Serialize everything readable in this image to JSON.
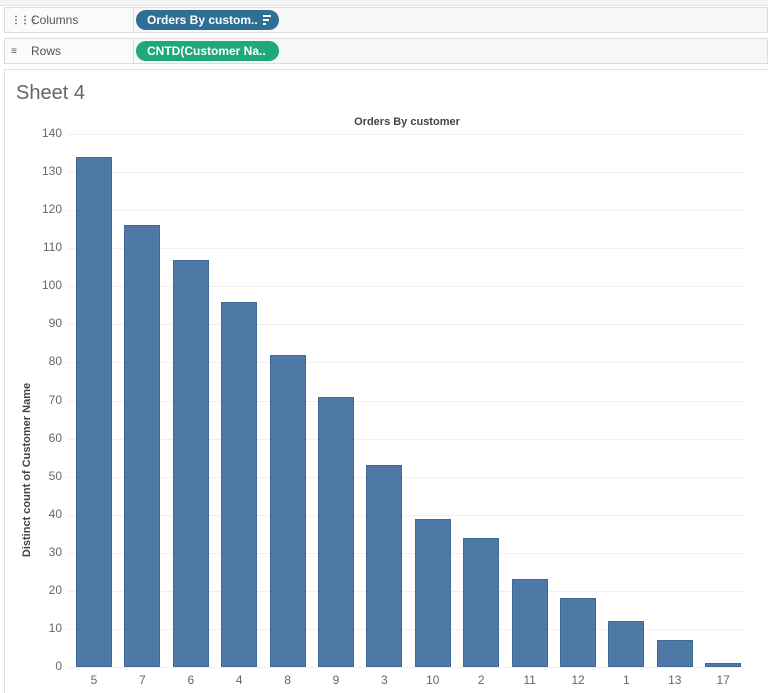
{
  "shelves": {
    "columns": {
      "label": "Columns",
      "icon": "columns-icon",
      "pill": "Orders By custom..",
      "pill_color": "#2e6f96",
      "sorted": true
    },
    "rows": {
      "label": "Rows",
      "icon": "rows-icon",
      "pill": "CNTD(Customer Na..",
      "pill_color": "#1fa97a"
    }
  },
  "sheet": {
    "title": "Sheet 4"
  },
  "chart_data": {
    "type": "bar",
    "title": "Orders By customer",
    "xlabel": "",
    "ylabel": "Distinct count of Customer Name",
    "categories": [
      "5",
      "7",
      "6",
      "4",
      "8",
      "9",
      "3",
      "10",
      "2",
      "11",
      "12",
      "1",
      "13",
      "17"
    ],
    "values": [
      134,
      116,
      107,
      96,
      82,
      71,
      53,
      39,
      34,
      23,
      18,
      12,
      7,
      1
    ],
    "ylim": [
      0,
      140
    ],
    "yticks": [
      0,
      10,
      20,
      30,
      40,
      50,
      60,
      70,
      80,
      90,
      100,
      110,
      120,
      130,
      140
    ],
    "grid": true,
    "bar_color": "#4e79a7",
    "legend": null
  }
}
